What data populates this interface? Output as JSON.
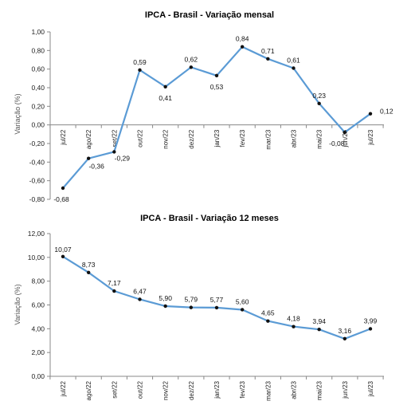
{
  "chart_data": [
    {
      "type": "line",
      "title": "IPCA - Brasil - Variação mensal",
      "ylabel": "Variação (%)",
      "xlabel": "",
      "categories": [
        "jul/22",
        "ago/22",
        "set/22",
        "out/22",
        "nov/22",
        "dez/22",
        "jan/23",
        "fev/23",
        "mar/23",
        "abr/23",
        "mai/23",
        "jun/23",
        "jul/23"
      ],
      "values": [
        -0.68,
        -0.36,
        -0.29,
        0.59,
        0.41,
        0.62,
        0.53,
        0.84,
        0.71,
        0.61,
        0.23,
        -0.08,
        0.12
      ],
      "value_labels": [
        "-0,68",
        "-0,36",
        "-0,29",
        "0,59",
        "0,41",
        "0,62",
        "0,53",
        "0,84",
        "0,71",
        "0,61",
        "0,23",
        "-0,08",
        "0,12"
      ],
      "ylim": [
        -0.8,
        1.0
      ],
      "yticks": [
        "-0,80",
        "-0,60",
        "-0,40",
        "-0,20",
        "0,00",
        "0,20",
        "0,40",
        "0,60",
        "0,80",
        "1,00"
      ],
      "line_color": "#5b9bd5",
      "grid": false
    },
    {
      "type": "line",
      "title": "IPCA - Brasil - Variação 12 meses",
      "ylabel": "Variação (%)",
      "xlabel": "",
      "categories": [
        "jul/22",
        "ago/22",
        "set/22",
        "out/22",
        "nov/22",
        "dez/22",
        "jan/23",
        "fev/23",
        "mar/23",
        "abr/23",
        "mai/23",
        "jun/23",
        "jul/23"
      ],
      "values": [
        10.07,
        8.73,
        7.17,
        6.47,
        5.9,
        5.79,
        5.77,
        5.6,
        4.65,
        4.18,
        3.94,
        3.16,
        3.99
      ],
      "value_labels": [
        "10,07",
        "8,73",
        "7,17",
        "6,47",
        "5,90",
        "5,79",
        "5,77",
        "5,60",
        "4,65",
        "4,18",
        "3,94",
        "3,16",
        "3,99"
      ],
      "ylim": [
        0,
        12
      ],
      "yticks": [
        "0,00",
        "2,00",
        "4,00",
        "6,00",
        "8,00",
        "10,00",
        "12,00"
      ],
      "line_color": "#5b9bd5",
      "grid": false
    }
  ]
}
